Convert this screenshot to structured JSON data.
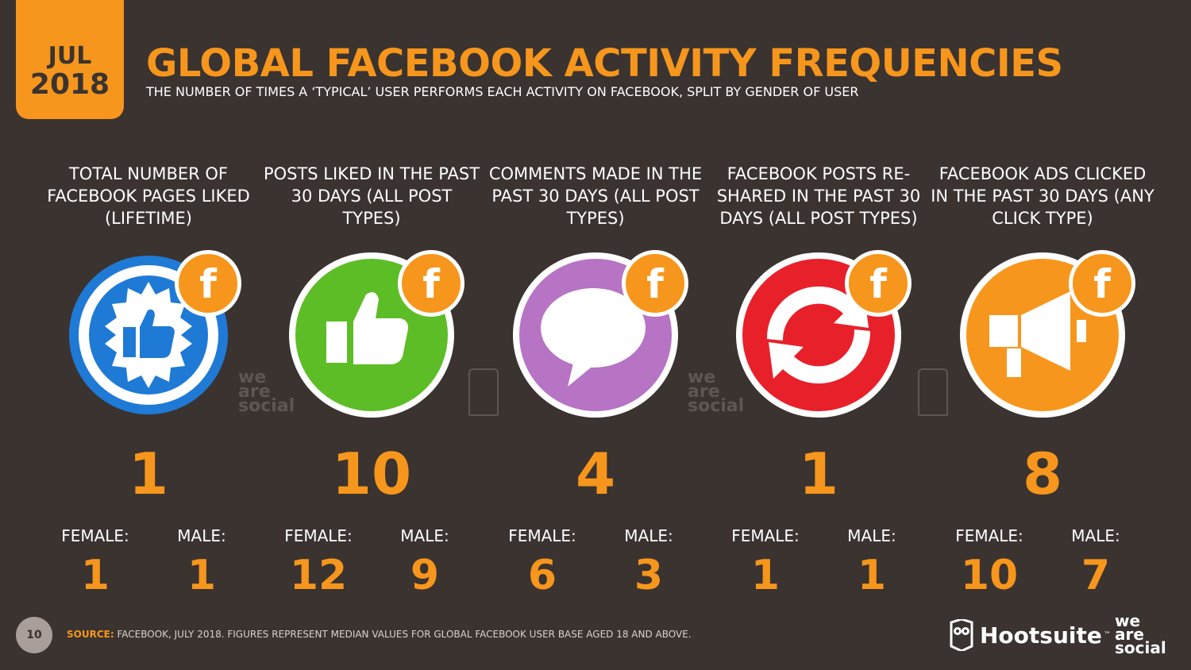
{
  "badge": {
    "month": "JUL",
    "year": "2018"
  },
  "header": {
    "title": "GLOBAL FACEBOOK ACTIVITY FREQUENCIES",
    "subtitle": "THE NUMBER OF TIMES A ‘TYPICAL’ USER PERFORMS EACH ACTIVITY ON FACEBOOK, SPLIT BY GENDER OF USER"
  },
  "labels": {
    "female": "FEMALE:",
    "male": "MALE:",
    "fb": "f"
  },
  "colors": {
    "orange": "#f7961c",
    "blue": "#1f7ad6",
    "green": "#5dbd27",
    "purple": "#b773c4",
    "red": "#e8202a"
  },
  "activities": [
    {
      "label": "TOTAL NUMBER OF FACEBOOK PAGES LIKED (LIFETIME)",
      "icon": "badge-like-icon",
      "total": "1",
      "female": "1",
      "male": "1"
    },
    {
      "label": "POSTS LIKED IN THE PAST 30 DAYS (ALL POST TYPES)",
      "icon": "thumbs-up-icon",
      "total": "10",
      "female": "12",
      "male": "9"
    },
    {
      "label": "COMMENTS MADE IN THE PAST 30 DAYS (ALL POST TYPES)",
      "icon": "speech-bubble-icon",
      "total": "4",
      "female": "6",
      "male": "3"
    },
    {
      "label": "FACEBOOK POSTS RE-SHARED IN THE PAST 30 DAYS (ALL POST TYPES)",
      "icon": "reshare-arrows-icon",
      "total": "1",
      "female": "1",
      "male": "1"
    },
    {
      "label": "FACEBOOK ADS CLICKED IN THE PAST 30 DAYS (ANY CLICK TYPE)",
      "icon": "megaphone-icon",
      "total": "8",
      "female": "10",
      "male": "7"
    }
  ],
  "footer": {
    "page": "10",
    "source_label": "SOURCE:",
    "source_text": "FACEBOOK, JULY 2018. FIGURES REPRESENT MEDIAN VALUES FOR GLOBAL FACEBOOK USER BASE AGED 18 AND ABOVE.",
    "hootsuite": "Hootsuite",
    "tm": "™",
    "was_1": "we",
    "was_2": "are",
    "was_3": "social"
  }
}
